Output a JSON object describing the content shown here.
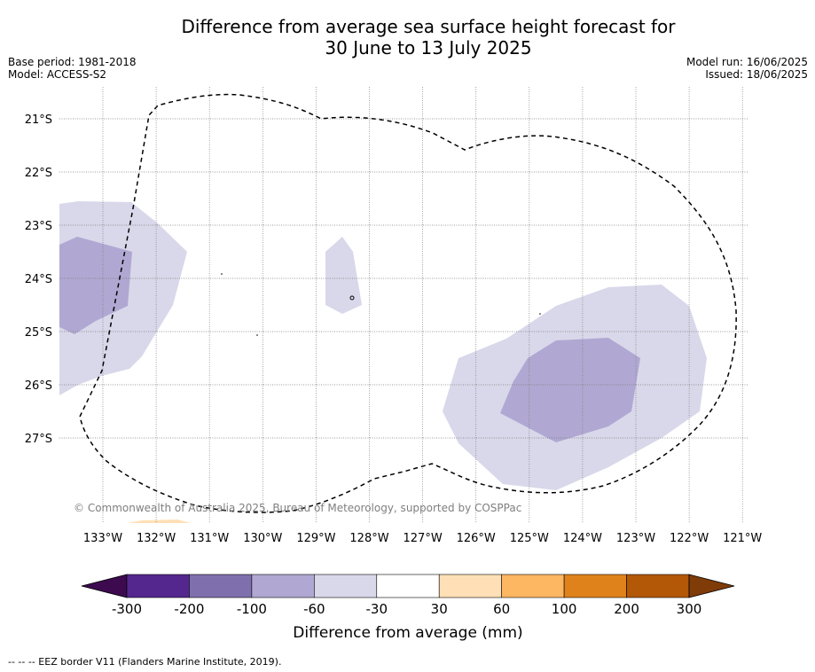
{
  "title_line1": "Difference from average sea surface height forecast for",
  "title_line2": "30 June to 13 July 2025",
  "base_period": "Base period: 1981-2018",
  "model": "Model: ACCESS-S2",
  "model_run": "Model run: 16/06/2025",
  "issued": "Issued: 18/06/2025",
  "copyright": "© Commonwealth of Australia 2025, Bureau of Meteorology, supported by COSPPac",
  "lat_ticks": [
    "21°S",
    "22°S",
    "23°S",
    "24°S",
    "25°S",
    "26°S",
    "27°S"
  ],
  "lon_ticks": [
    "133°W",
    "132°W",
    "131°W",
    "130°W",
    "129°W",
    "128°W",
    "127°W",
    "126°W",
    "125°W",
    "124°W",
    "123°W",
    "122°W",
    "121°W"
  ],
  "colorbar": {
    "label": "Difference from average (mm)",
    "ticks": [
      "-300",
      "-200",
      "-100",
      "-60",
      "-30",
      "30",
      "60",
      "100",
      "200",
      "300"
    ],
    "colors": [
      "#3d0a50",
      "#54278f",
      "#7f6fad",
      "#b0a8d2",
      "#d8d8ea",
      "#ffffff",
      "#ffe0b6",
      "#fdb661",
      "#e0821b",
      "#b35806",
      "#7f3b08"
    ]
  },
  "footnote": "-- -- -- EEZ border V11 (Flanders Marine Institute, 2019)."
}
